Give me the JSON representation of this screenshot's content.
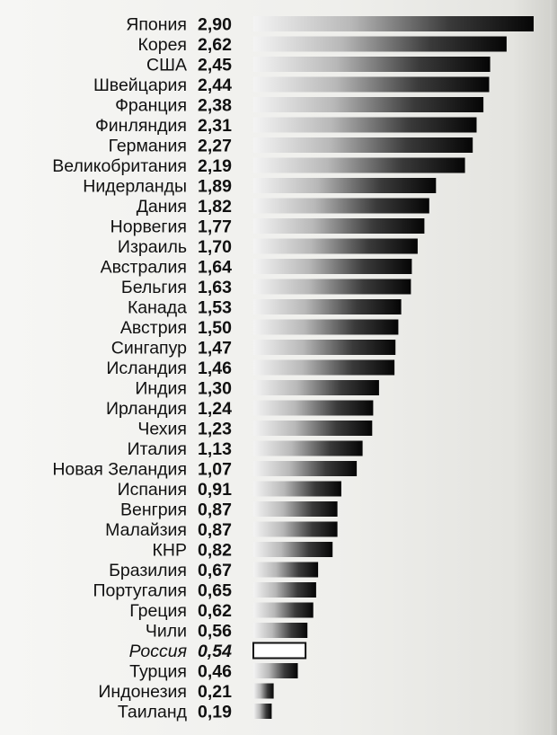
{
  "chart_data": {
    "type": "bar",
    "orientation": "horizontal",
    "title": "",
    "xlabel": "",
    "ylabel": "",
    "xlim": [
      0,
      2.9
    ],
    "grid": false,
    "legend": "none",
    "highlight_category": "Россия",
    "colors": {
      "bar_dark": "#050505",
      "bar_light": "#f4f4f4",
      "text": "#111111"
    },
    "categories": [
      "Япония",
      "Корея",
      "США",
      "Швейцария",
      "Франция",
      "Финляндия",
      "Германия",
      "Великобритания",
      "Нидерланды",
      "Дания",
      "Норвегия",
      "Израиль",
      "Австралия",
      "Бельгия",
      "Канада",
      "Австрия",
      "Сингапур",
      "Исландия",
      "Индия",
      "Ирландия",
      "Чехия",
      "Италия",
      "Новая Зеландия",
      "Испания",
      "Венгрия",
      "Малайзия",
      "КНР",
      "Бразилия",
      "Португалия",
      "Греция",
      "Чили",
      "Россия",
      "Турция",
      "Индонезия",
      "Таиланд"
    ],
    "values": [
      2.9,
      2.62,
      2.45,
      2.44,
      2.38,
      2.31,
      2.27,
      2.19,
      1.89,
      1.82,
      1.77,
      1.7,
      1.64,
      1.63,
      1.53,
      1.5,
      1.47,
      1.46,
      1.3,
      1.24,
      1.23,
      1.13,
      1.07,
      0.91,
      0.87,
      0.87,
      0.82,
      0.67,
      0.65,
      0.62,
      0.56,
      0.54,
      0.46,
      0.21,
      0.19
    ],
    "value_labels": [
      "2,90",
      "2,62",
      "2,45",
      "2,44",
      "2,38",
      "2,31",
      "2,27",
      "2,19",
      "1,89",
      "1,82",
      "1,77",
      "1,70",
      "1,64",
      "1,63",
      "1,53",
      "1,50",
      "1,47",
      "1,46",
      "1,30",
      "1,24",
      "1,23",
      "1,13",
      "1,07",
      "0,91",
      "0,87",
      "0,87",
      "0,82",
      "0,67",
      "0,65",
      "0,62",
      "0,56",
      "0,54",
      "0,46",
      "0,21",
      "0,19"
    ]
  }
}
